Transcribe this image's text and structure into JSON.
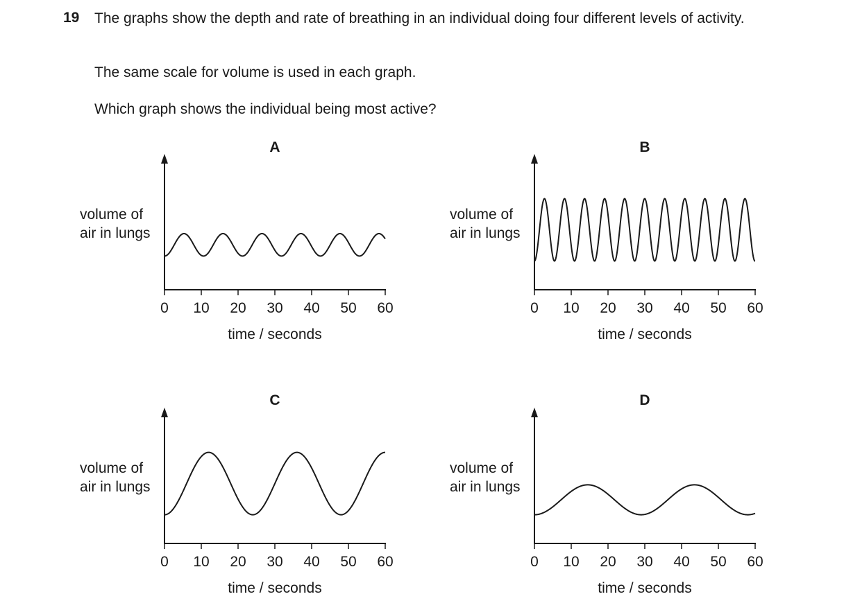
{
  "question": {
    "number": "19",
    "text": "The graphs show the depth and rate of breathing in an individual doing four different levels of activity.",
    "line2": "The same scale for volume is used in each graph.",
    "line3": "Which graph shows the individual being most active?"
  },
  "chart_data": [
    {
      "type": "line",
      "title": "A",
      "ylabel": [
        "volume of",
        "air in lungs"
      ],
      "xlabel": "time / seconds",
      "xticks": [
        0,
        10,
        20,
        30,
        40,
        50,
        60
      ],
      "xlim": [
        0,
        60
      ],
      "ylim": [
        0,
        1
      ],
      "series": [
        {
          "period_s": 10.6,
          "amplitude": 0.18,
          "baseline": 0.27,
          "phase_start": "trough"
        }
      ]
    },
    {
      "type": "line",
      "title": "B",
      "ylabel": [
        "volume of",
        "air in lungs"
      ],
      "xlabel": "time / seconds",
      "xticks": [
        0,
        10,
        20,
        30,
        40,
        50,
        60
      ],
      "xlim": [
        0,
        60
      ],
      "ylim": [
        0,
        1
      ],
      "series": [
        {
          "period_s": 5.45,
          "amplitude": 0.5,
          "baseline": 0.23,
          "phase_start": "trough"
        }
      ]
    },
    {
      "type": "line",
      "title": "C",
      "ylabel": [
        "volume of",
        "air in lungs"
      ],
      "xlabel": "time / seconds",
      "xticks": [
        0,
        10,
        20,
        30,
        40,
        50,
        60
      ],
      "xlim": [
        0,
        60
      ],
      "ylim": [
        0,
        1
      ],
      "series": [
        {
          "period_s": 24,
          "amplitude": 0.5,
          "baseline": 0.23,
          "phase_start": "trough"
        }
      ]
    },
    {
      "type": "line",
      "title": "D",
      "ylabel": [
        "volume of",
        "air in lungs"
      ],
      "xlabel": "time / seconds",
      "xticks": [
        0,
        10,
        20,
        30,
        40,
        50,
        60
      ],
      "xlim": [
        0,
        60
      ],
      "ylim": [
        0,
        1
      ],
      "series": [
        {
          "period_s": 29,
          "amplitude": 0.24,
          "baseline": 0.23,
          "phase_start": "trough"
        }
      ]
    }
  ]
}
